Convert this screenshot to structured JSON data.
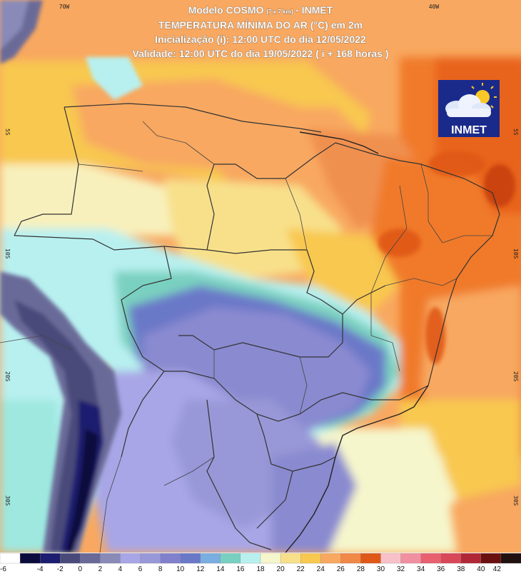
{
  "header": {
    "model_prefix": "Modelo COSMO ",
    "model_resolution": "[7 x 7 km]",
    "model_suffix": " - INMET",
    "variable": "TEMPERATURA MÍNIMA DO AR (°C) em 2m",
    "initialization": "Inicialização (i): 12:00 UTC do dia 12/05/2022",
    "validity": "Validade: 12:00 UTC do dia 19/05/2022 ( i + 168 horas )"
  },
  "logo": {
    "text": "INMET",
    "bg": "#1a2a8a"
  },
  "coordinates": {
    "top": [
      "70W",
      "40W"
    ],
    "left": [
      "5S",
      "10S",
      "20S",
      "30S"
    ],
    "right": [
      "5S",
      "10S",
      "20S",
      "30S"
    ]
  },
  "legend": {
    "labels": [
      "-6",
      "-4",
      "-2",
      "0",
      "2",
      "4",
      "6",
      "8",
      "10",
      "12",
      "14",
      "16",
      "18",
      "20",
      "22",
      "24",
      "26",
      "28",
      "30",
      "32",
      "34",
      "36",
      "38",
      "40",
      "42"
    ],
    "colors": [
      "#ffffff",
      "#0c0c3c",
      "#1c1c70",
      "#4a4a7a",
      "#6a6a98",
      "#8a8ab8",
      "#a8a6e6",
      "#9898d8",
      "#8080cc",
      "#6a78c8",
      "#7aaee0",
      "#7ad0c0",
      "#b8f0f0",
      "#f6f6cc",
      "#f8e08a",
      "#f8c850",
      "#f8a860",
      "#f08848",
      "#e05818",
      "#f8c0c8",
      "#f090a0",
      "#e86070",
      "#d84858",
      "#b02838",
      "#6a1010",
      "#201010"
    ]
  }
}
